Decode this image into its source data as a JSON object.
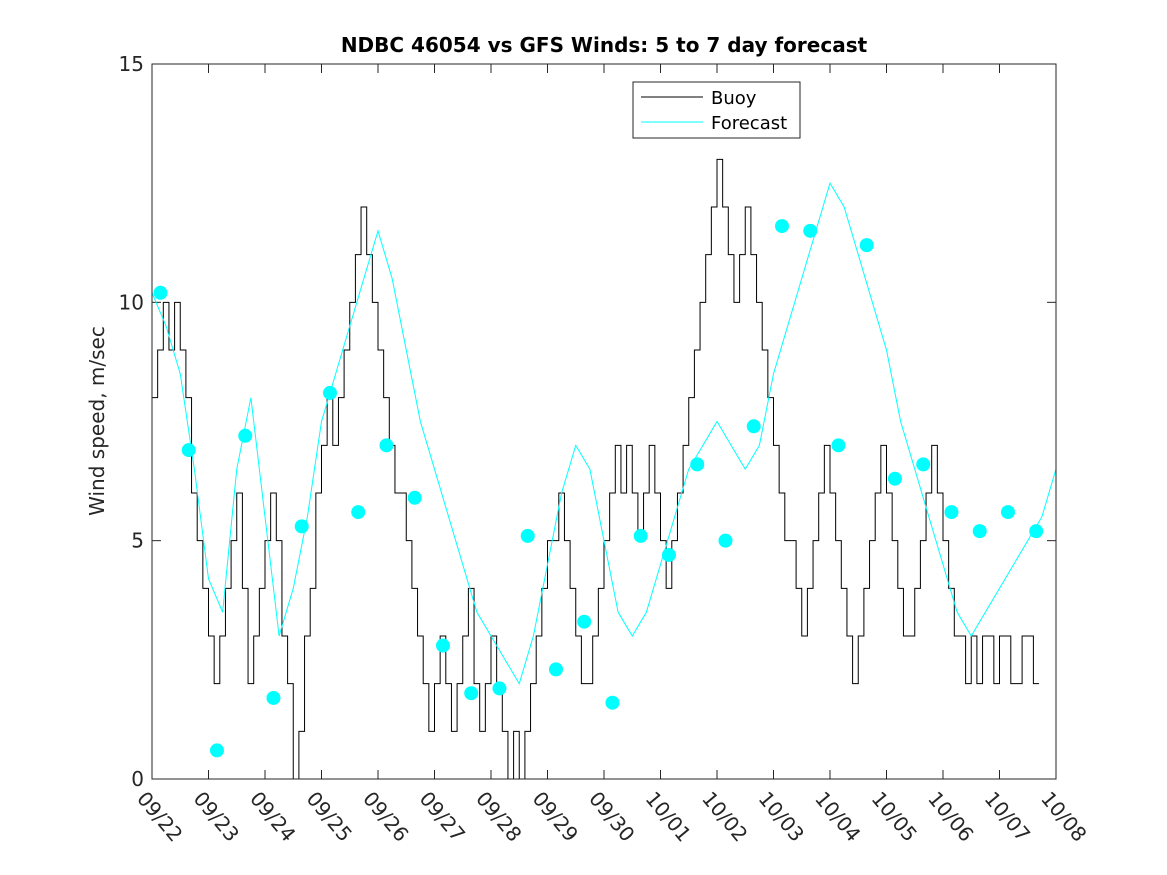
{
  "chart_data": {
    "type": "line",
    "title": "NDBC 46054 vs GFS Winds: 5 to 7 day forecast",
    "xlabel": "",
    "ylabel": "Wind speed, m/sec",
    "ylim": [
      0,
      15
    ],
    "xlim": [
      0,
      16
    ],
    "y_ticks": [
      {
        "value": 0,
        "label": "0"
      },
      {
        "value": 5,
        "label": "5"
      },
      {
        "value": 10,
        "label": "10"
      },
      {
        "value": 15,
        "label": "15"
      }
    ],
    "x_ticks": [
      {
        "value": 0,
        "label": "09/22"
      },
      {
        "value": 1,
        "label": "09/23"
      },
      {
        "value": 2,
        "label": "09/24"
      },
      {
        "value": 3,
        "label": "09/25"
      },
      {
        "value": 4,
        "label": "09/26"
      },
      {
        "value": 5,
        "label": "09/27"
      },
      {
        "value": 6,
        "label": "09/28"
      },
      {
        "value": 7,
        "label": "09/29"
      },
      {
        "value": 8,
        "label": "09/30"
      },
      {
        "value": 9,
        "label": "10/01"
      },
      {
        "value": 10,
        "label": "10/02"
      },
      {
        "value": 11,
        "label": "10/03"
      },
      {
        "value": 12,
        "label": "10/04"
      },
      {
        "value": 13,
        "label": "10/05"
      },
      {
        "value": 14,
        "label": "10/06"
      },
      {
        "value": 15,
        "label": "10/07"
      },
      {
        "value": 16,
        "label": "10/08"
      }
    ],
    "legend": {
      "position": "top-center",
      "entries": [
        {
          "label": "Buoy",
          "color": "#000000"
        },
        {
          "label": "Forecast",
          "color": "#00ffff"
        }
      ]
    },
    "series": [
      {
        "name": "Buoy",
        "color": "#000000",
        "x": [
          0.0,
          0.1,
          0.2,
          0.3,
          0.4,
          0.5,
          0.6,
          0.7,
          0.8,
          0.9,
          1.0,
          1.1,
          1.2,
          1.3,
          1.4,
          1.5,
          1.6,
          1.7,
          1.8,
          1.9,
          2.0,
          2.1,
          2.2,
          2.3,
          2.4,
          2.5,
          2.6,
          2.7,
          2.8,
          2.9,
          3.0,
          3.1,
          3.2,
          3.3,
          3.4,
          3.5,
          3.6,
          3.7,
          3.8,
          3.9,
          4.0,
          4.1,
          4.2,
          4.3,
          4.4,
          4.5,
          4.6,
          4.7,
          4.8,
          4.9,
          5.0,
          5.1,
          5.2,
          5.3,
          5.4,
          5.5,
          5.6,
          5.7,
          5.8,
          5.9,
          6.0,
          6.1,
          6.2,
          6.3,
          6.4,
          6.5,
          6.6,
          6.7,
          6.8,
          6.9,
          7.0,
          7.1,
          7.2,
          7.3,
          7.4,
          7.5,
          7.6,
          7.7,
          7.8,
          7.9,
          8.0,
          8.1,
          8.2,
          8.3,
          8.4,
          8.5,
          8.6,
          8.7,
          8.8,
          8.9,
          9.0,
          9.1,
          9.2,
          9.3,
          9.4,
          9.5,
          9.6,
          9.7,
          9.8,
          9.9,
          10.0,
          10.1,
          10.2,
          10.3,
          10.4,
          10.5,
          10.6,
          10.7,
          10.8,
          10.9,
          11.0,
          11.1,
          11.2,
          11.3,
          11.4,
          11.5,
          11.6,
          11.7,
          11.8,
          11.9,
          12.0,
          12.1,
          12.2,
          12.3,
          12.4,
          12.5,
          12.6,
          12.7,
          12.8,
          12.9,
          13.0,
          13.1,
          13.2,
          13.3,
          13.4,
          13.5,
          13.6,
          13.7,
          13.8,
          13.9,
          14.0,
          14.1,
          14.2,
          14.3,
          14.4,
          14.5,
          14.6,
          14.7,
          14.8,
          14.9,
          15.0,
          15.1,
          15.2,
          15.3,
          15.4,
          15.5,
          15.6,
          15.7
        ],
        "values": [
          8,
          9,
          10,
          9,
          10,
          9,
          8,
          6,
          5,
          4,
          3,
          2,
          3,
          4,
          5,
          6,
          4,
          2,
          3,
          4,
          5,
          6,
          5,
          3,
          2,
          0,
          1,
          3,
          4,
          6,
          7,
          8,
          7,
          8,
          9,
          10,
          11,
          12,
          11,
          10,
          9,
          8,
          7,
          6,
          6,
          5,
          4,
          3,
          2,
          1,
          2,
          3,
          2,
          1,
          2,
          3,
          4,
          2,
          1,
          2,
          3,
          2,
          1,
          0,
          1,
          0,
          1,
          2,
          3,
          4,
          5,
          5,
          6,
          5,
          4,
          3,
          2,
          2,
          3,
          4,
          5,
          6,
          7,
          6,
          7,
          6,
          5,
          6,
          7,
          6,
          5,
          4,
          5,
          6,
          7,
          8,
          9,
          10,
          11,
          12,
          13,
          12,
          11,
          10,
          11,
          12,
          11,
          10,
          9,
          8,
          7,
          6,
          5,
          5,
          4,
          3,
          4,
          5,
          6,
          7,
          6,
          5,
          4,
          3,
          2,
          3,
          4,
          5,
          6,
          7,
          6,
          5,
          4,
          3,
          3,
          4,
          5,
          6,
          7,
          6,
          5,
          4,
          3,
          3,
          2,
          3,
          2,
          3,
          3,
          2,
          3,
          3,
          2,
          2,
          3,
          3,
          2,
          2
        ]
      },
      {
        "name": "Forecast",
        "color": "#00ffff",
        "x": [
          0.0,
          0.25,
          0.5,
          0.75,
          1.0,
          1.25,
          1.5,
          1.75,
          2.0,
          2.25,
          2.5,
          2.75,
          3.0,
          3.25,
          3.5,
          3.75,
          4.0,
          4.25,
          4.5,
          4.75,
          5.0,
          5.25,
          5.5,
          5.75,
          6.0,
          6.25,
          6.5,
          6.75,
          7.0,
          7.25,
          7.5,
          7.75,
          8.0,
          8.25,
          8.5,
          8.75,
          9.0,
          9.25,
          9.5,
          9.75,
          10.0,
          10.25,
          10.5,
          10.75,
          11.0,
          11.25,
          11.5,
          11.75,
          12.0,
          12.25,
          12.5,
          12.75,
          13.0,
          13.25,
          13.5,
          13.75,
          14.0,
          14.25,
          14.5,
          14.75,
          15.0,
          15.25,
          15.5,
          15.75,
          16.0
        ],
        "values": [
          10.2,
          9.5,
          8.5,
          6.5,
          4.2,
          3.5,
          6.5,
          8.0,
          5.5,
          3.0,
          4.0,
          5.5,
          7.5,
          8.5,
          9.5,
          10.5,
          11.5,
          10.5,
          9.0,
          7.5,
          6.5,
          5.5,
          4.5,
          3.5,
          3.0,
          2.5,
          2.0,
          3.0,
          4.5,
          6.0,
          7.0,
          6.5,
          5.0,
          3.5,
          3.0,
          3.5,
          4.5,
          5.5,
          6.5,
          7.0,
          7.5,
          7.0,
          6.5,
          7.0,
          8.5,
          9.5,
          10.5,
          11.5,
          12.5,
          12.0,
          11.0,
          10.0,
          9.0,
          7.5,
          6.5,
          5.5,
          4.5,
          3.5,
          3.0,
          3.5,
          4.0,
          4.5,
          5.0,
          5.5,
          6.5
        ]
      },
      {
        "name": "Forecast dots",
        "color": "#00ffff",
        "x": [
          0.15,
          0.65,
          1.15,
          1.65,
          2.15,
          2.65,
          3.15,
          3.65,
          4.15,
          4.65,
          5.15,
          5.65,
          6.15,
          6.65,
          7.15,
          7.65,
          8.15,
          8.65,
          9.15,
          9.65,
          10.15,
          10.65,
          11.15,
          11.65,
          12.15,
          12.65,
          13.15,
          13.65,
          14.15,
          14.65,
          15.15,
          15.65
        ],
        "values": [
          10.2,
          6.9,
          0.6,
          7.2,
          1.7,
          5.3,
          8.1,
          5.6,
          7.0,
          5.9,
          2.8,
          1.8,
          1.9,
          5.1,
          2.3,
          3.3,
          1.6,
          5.1,
          4.7,
          6.6,
          5.0,
          7.4,
          11.6,
          11.5,
          7.0,
          11.2,
          6.3,
          6.6,
          5.6,
          5.2,
          5.6,
          5.2
        ]
      }
    ]
  }
}
